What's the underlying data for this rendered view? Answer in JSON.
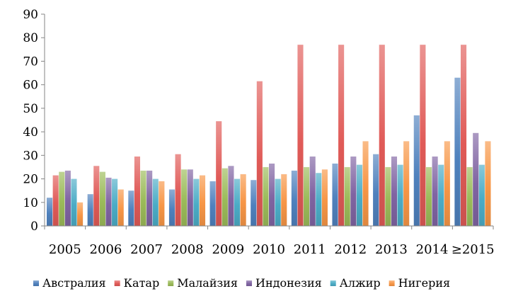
{
  "chart_data": {
    "type": "bar",
    "categories": [
      "2005",
      "2006",
      "2007",
      "2008",
      "2009",
      "2010",
      "2011",
      "2012",
      "2013",
      "2014",
      "≥2015"
    ],
    "ylim": [
      0,
      90
    ],
    "yticks": [
      "0",
      "10",
      "20",
      "30",
      "40",
      "50",
      "60",
      "70",
      "80",
      "90"
    ],
    "grid": false,
    "legend_position": "bottom",
    "series": [
      {
        "name": "Австралия",
        "color": "#4f81bd",
        "values": [
          12,
          13.5,
          15,
          15.5,
          19,
          19.5,
          23.5,
          26.5,
          30.5,
          47,
          63
        ]
      },
      {
        "name": "Катар",
        "color": "#e05a57",
        "values": [
          21.5,
          25.5,
          29.5,
          30.5,
          44.5,
          61.5,
          77,
          77,
          77,
          77,
          77
        ]
      },
      {
        "name": "Малайзия",
        "color": "#9bbb59",
        "values": [
          23,
          23,
          23.5,
          24,
          24.5,
          25,
          25,
          25,
          25,
          25,
          25
        ]
      },
      {
        "name": "Индонезия",
        "color": "#8064a2",
        "values": [
          23.5,
          20.5,
          23.5,
          24,
          25.5,
          26.5,
          29.5,
          29.5,
          29.5,
          29.5,
          39.5
        ]
      },
      {
        "name": "Алжир",
        "color": "#4bacc6",
        "values": [
          20,
          20,
          20,
          20,
          20,
          20,
          22.5,
          26,
          26,
          26,
          26
        ]
      },
      {
        "name": "Нигерия",
        "color": "#f79646",
        "values": [
          10,
          15.5,
          19,
          21.5,
          22,
          22,
          24,
          36,
          36,
          36,
          36
        ]
      }
    ]
  }
}
